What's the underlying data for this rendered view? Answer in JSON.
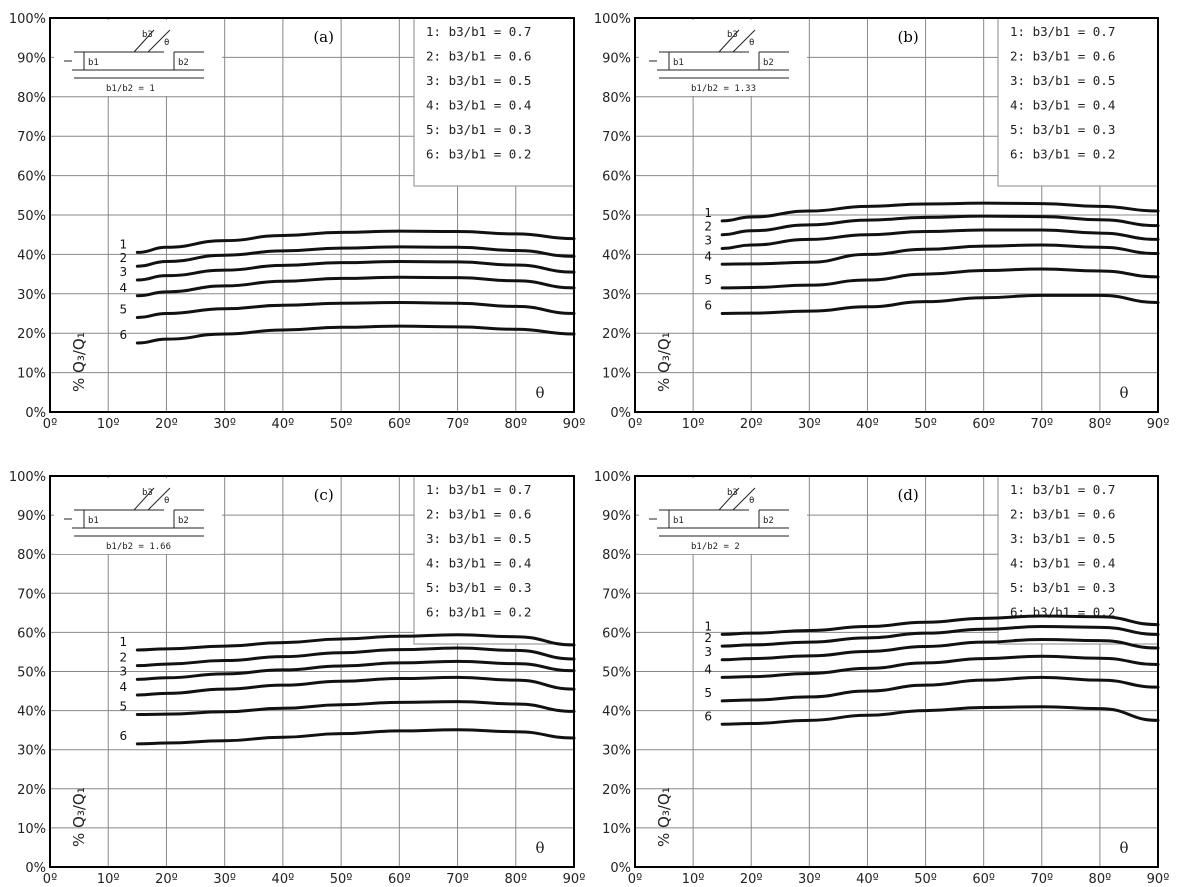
{
  "chart_data": [
    {
      "type": "line",
      "panel": "(a)",
      "ratio_label": "b1/b2 = 1",
      "x": [
        15,
        20,
        30,
        40,
        50,
        60,
        70,
        80,
        90
      ],
      "series": [
        {
          "name": "1: b3/b1 = 0.7",
          "label": "1",
          "values": [
            40.5,
            41.8,
            43.5,
            44.8,
            45.6,
            45.9,
            45.8,
            45.2,
            44.0
          ]
        },
        {
          "name": "2: b3/b1 = 0.6",
          "label": "2",
          "values": [
            37.0,
            38.2,
            39.8,
            40.9,
            41.6,
            41.9,
            41.8,
            41.0,
            39.5
          ]
        },
        {
          "name": "3: b3/b1 = 0.5",
          "label": "3",
          "values": [
            33.5,
            34.6,
            36.0,
            37.2,
            37.9,
            38.2,
            38.1,
            37.3,
            35.5
          ]
        },
        {
          "name": "4: b3/b1 = 0.4",
          "label": "4",
          "values": [
            29.5,
            30.5,
            32.0,
            33.2,
            33.9,
            34.2,
            34.1,
            33.3,
            31.5
          ]
        },
        {
          "name": "5: b3/b1 = 0.3",
          "label": "5",
          "values": [
            24.0,
            25.0,
            26.2,
            27.1,
            27.6,
            27.8,
            27.6,
            26.8,
            25.0
          ]
        },
        {
          "name": "6: b3/b1 = 0.2",
          "label": "6",
          "values": [
            17.5,
            18.5,
            19.8,
            20.8,
            21.5,
            21.8,
            21.6,
            21.0,
            19.8
          ]
        }
      ]
    },
    {
      "type": "line",
      "panel": "(b)",
      "ratio_label": "b1/b2 = 1.33",
      "x": [
        15,
        20,
        30,
        40,
        50,
        60,
        70,
        80,
        90
      ],
      "series": [
        {
          "name": "1: b3/b1 = 0.7",
          "label": "1",
          "values": [
            48.5,
            49.5,
            51.0,
            52.2,
            52.8,
            53.0,
            52.9,
            52.2,
            51.0
          ]
        },
        {
          "name": "2: b3/b1 = 0.6",
          "label": "2",
          "values": [
            45.0,
            46.0,
            47.5,
            48.7,
            49.4,
            49.7,
            49.6,
            48.8,
            47.3
          ]
        },
        {
          "name": "3: b3/b1 = 0.5",
          "label": "3",
          "values": [
            41.5,
            42.4,
            43.8,
            45.0,
            45.8,
            46.2,
            46.2,
            45.4,
            43.8
          ]
        },
        {
          "name": "4: b3/b1 = 0.4",
          "label": "4",
          "values": [
            37.5,
            37.6,
            38.0,
            40.0,
            41.3,
            42.1,
            42.4,
            41.8,
            40.2
          ]
        },
        {
          "name": "5: b3/b1 = 0.3",
          "label": "5",
          "values": [
            31.5,
            31.6,
            32.2,
            33.5,
            35.0,
            35.9,
            36.3,
            35.8,
            34.3
          ]
        },
        {
          "name": "6: b3/b1 = 0.2",
          "label": "6",
          "values": [
            25.0,
            25.1,
            25.6,
            26.7,
            28.0,
            29.0,
            29.6,
            29.6,
            27.8
          ]
        }
      ]
    },
    {
      "type": "line",
      "panel": "(c)",
      "ratio_label": "b1/b2 = 1.66",
      "x": [
        15,
        20,
        30,
        40,
        50,
        60,
        70,
        80,
        90
      ],
      "series": [
        {
          "name": "1: b3/b1 = 0.7",
          "label": "1",
          "values": [
            55.5,
            55.8,
            56.5,
            57.4,
            58.3,
            59.0,
            59.4,
            58.9,
            56.8
          ]
        },
        {
          "name": "2: b3/b1 = 0.6",
          "label": "2",
          "values": [
            51.5,
            51.9,
            52.8,
            53.8,
            54.8,
            55.6,
            56.0,
            55.4,
            53.2
          ]
        },
        {
          "name": "3: b3/b1 = 0.5",
          "label": "3",
          "values": [
            48.0,
            48.4,
            49.4,
            50.4,
            51.4,
            52.2,
            52.6,
            52.0,
            50.2
          ]
        },
        {
          "name": "4: b3/b1 = 0.4",
          "label": "4",
          "values": [
            44.0,
            44.4,
            45.5,
            46.5,
            47.5,
            48.2,
            48.5,
            47.8,
            45.5
          ]
        },
        {
          "name": "5: b3/b1 = 0.3",
          "label": "5",
          "values": [
            39.0,
            39.1,
            39.7,
            40.6,
            41.5,
            42.1,
            42.3,
            41.7,
            39.8
          ]
        },
        {
          "name": "6: b3/b1 = 0.2",
          "label": "6",
          "values": [
            31.5,
            31.7,
            32.3,
            33.2,
            34.1,
            34.8,
            35.1,
            34.6,
            33.0
          ]
        }
      ]
    },
    {
      "type": "line",
      "panel": "(d)",
      "ratio_label": "b1/b2 = 2",
      "x": [
        15,
        20,
        30,
        40,
        50,
        60,
        70,
        80,
        90
      ],
      "series": [
        {
          "name": "1: b3/b1 = 0.7",
          "label": "1",
          "values": [
            59.5,
            59.8,
            60.5,
            61.5,
            62.6,
            63.6,
            64.2,
            64.0,
            62.0
          ]
        },
        {
          "name": "2: b3/b1 = 0.6",
          "label": "2",
          "values": [
            56.5,
            56.8,
            57.5,
            58.6,
            59.8,
            60.8,
            61.5,
            61.3,
            59.5
          ]
        },
        {
          "name": "3: b3/b1 = 0.5",
          "label": "3",
          "values": [
            53.0,
            53.3,
            54.0,
            55.1,
            56.4,
            57.5,
            58.2,
            57.9,
            56.0
          ]
        },
        {
          "name": "4: b3/b1 = 0.4",
          "label": "4",
          "values": [
            48.5,
            48.7,
            49.5,
            50.8,
            52.2,
            53.3,
            53.9,
            53.4,
            51.8
          ]
        },
        {
          "name": "5: b3/b1 = 0.3",
          "label": "5",
          "values": [
            42.5,
            42.7,
            43.5,
            45.0,
            46.5,
            47.8,
            48.5,
            47.8,
            46.0
          ]
        },
        {
          "name": "6: b3/b1 = 0.2",
          "label": "6",
          "values": [
            36.5,
            36.7,
            37.5,
            38.8,
            40.0,
            40.8,
            41.0,
            40.5,
            37.5
          ]
        }
      ]
    }
  ],
  "axes": {
    "x_ticks": [
      "0º",
      "10º",
      "20º",
      "30º",
      "40º",
      "50º",
      "60º",
      "70º",
      "80º",
      "90º"
    ],
    "y_ticks": [
      "0%",
      "10%",
      "20%",
      "30%",
      "40%",
      "50%",
      "60%",
      "70%",
      "80%",
      "90%",
      "100%"
    ],
    "xlabel": "θ",
    "ylabel": "% Q₃/Q₁",
    "xlim": [
      0,
      90
    ],
    "ylim": [
      0,
      100
    ],
    "grid": true
  },
  "inset": {
    "b1": "b1",
    "b2": "b2",
    "b3": "b3",
    "theta": "θ"
  },
  "colors": {
    "curve": "#111111",
    "grid": "#888888",
    "frame": "#000000"
  }
}
